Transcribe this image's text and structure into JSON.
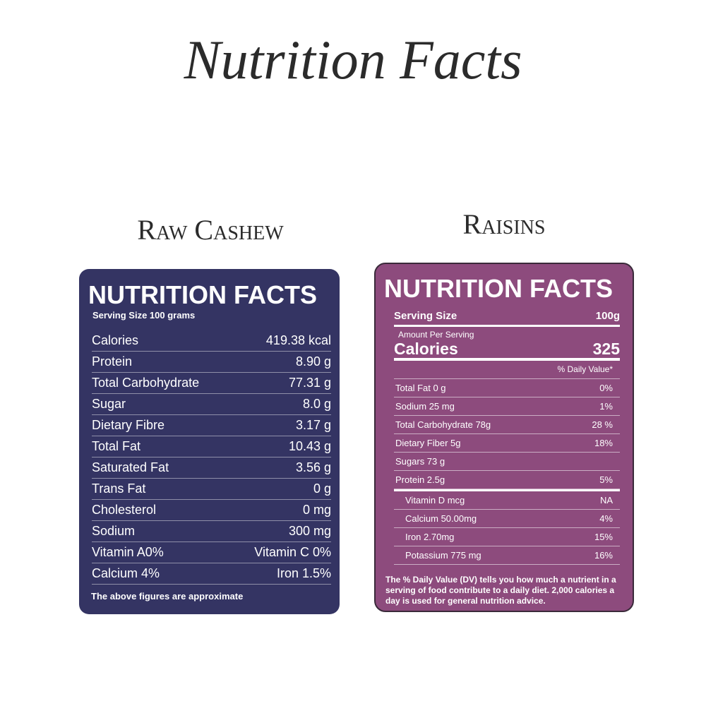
{
  "title": "Nutrition Facts",
  "cashew": {
    "heading": "Raw Cashew",
    "label_title": "NUTRITION FACTS",
    "serving": "Serving Size 100 grams",
    "rows": [
      [
        "Calories",
        "419.38 kcal"
      ],
      [
        "Protein",
        "8.90 g"
      ],
      [
        "Total Carbohydrate",
        "77.31 g"
      ],
      [
        "Sugar",
        "8.0 g"
      ],
      [
        "Dietary Fibre",
        "3.17 g"
      ],
      [
        "Total Fat",
        "10.43 g"
      ],
      [
        "Saturated Fat",
        "3.56 g"
      ],
      [
        "Trans Fat",
        "0 g"
      ],
      [
        "Cholesterol",
        "0 mg"
      ],
      [
        "Sodium",
        "300 mg"
      ],
      [
        "Vitamin A0%",
        "Vitamin C 0%"
      ],
      [
        "Calcium 4%",
        "Iron 1.5%"
      ]
    ],
    "footnote": "The above figures are approximate"
  },
  "raisins": {
    "heading": "Raisins",
    "label_title": "NUTRITION FACTS",
    "serving_label": "Serving Size",
    "serving_value": "100g",
    "amount_per_serving": "Amount Per Serving",
    "calories_label": "Calories",
    "calories_value": "325",
    "daily_value_header": "% Daily Value*",
    "rows": [
      [
        "Total Fat 0 g",
        "0%"
      ],
      [
        "Sodium 25 mg",
        "1%"
      ],
      [
        "Total Carbohydrate  78g",
        "28 %"
      ],
      [
        "Dietary Fiber 5g",
        "18%"
      ],
      [
        "Sugars  73 g",
        null
      ],
      [
        "Protein   2.5g",
        "5%"
      ]
    ],
    "vitamin_rows": [
      [
        "Vitamin D mcg",
        "NA"
      ],
      [
        "Calcium 50.00mg",
        "4%"
      ],
      [
        "Iron 2.70mg",
        "15%"
      ],
      [
        "Potassium 775 mg",
        "16%"
      ]
    ],
    "footnote": "The % Daily Value (DV) tells you how much a nutrient in a serving of food contribute to a daily diet. 2,000 calories a day is used for general nutrition advice."
  }
}
